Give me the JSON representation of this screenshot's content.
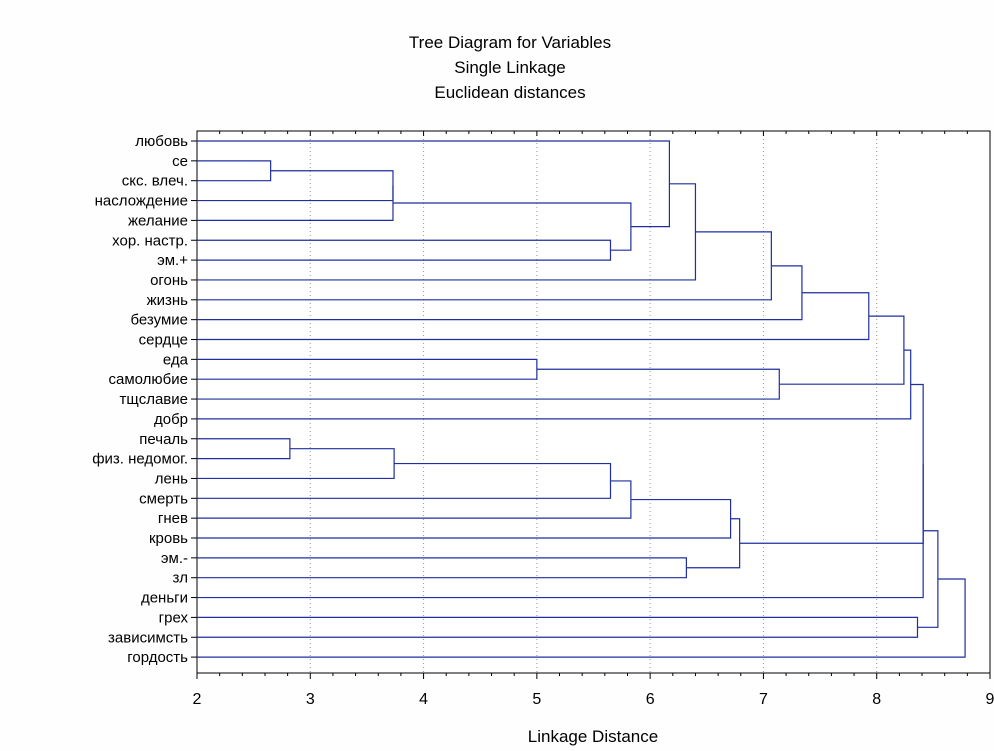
{
  "chart_data": {
    "type": "dendrogram",
    "title": [
      "Tree Diagram for  Variables",
      "Single Linkage",
      "Euclidean distances"
    ],
    "xlabel": "Linkage Distance",
    "ylabel": "",
    "xlim": [
      2,
      9
    ],
    "xticks": [
      2,
      3,
      4,
      5,
      6,
      7,
      8,
      9
    ],
    "grid": "vertical-dotted",
    "line_color": "#1f2f9f",
    "leaves": [
      "любовь",
      "се",
      "скс. влеч.",
      "наслождение",
      "желание",
      "хор. настр.",
      "эм.+",
      "огонь",
      "жизнь",
      "безумие",
      "сердце",
      "еда",
      "самолюбие",
      "тщславие",
      "добр",
      "печаль",
      "физ. недомог.",
      "лень",
      "смерть",
      "гнев",
      "кровь",
      "эм.-",
      "зл",
      "деньги",
      "грех",
      "зависимсть",
      "гордость"
    ],
    "merges": [
      {
        "id": "c1",
        "children": [
          "се",
          "скс. влеч."
        ],
        "height": 2.65
      },
      {
        "id": "c2",
        "children": [
          "c1",
          "наслождение"
        ],
        "height": 3.73
      },
      {
        "id": "c3",
        "children": [
          "c2",
          "желание"
        ],
        "height": 3.73
      },
      {
        "id": "c4",
        "children": [
          "хор. настр.",
          "эм.+"
        ],
        "height": 5.65
      },
      {
        "id": "c5",
        "children": [
          "c3",
          "c4"
        ],
        "height": 5.83
      },
      {
        "id": "c6",
        "children": [
          "любовь",
          "c5"
        ],
        "height": 6.17
      },
      {
        "id": "c7",
        "children": [
          "c6",
          "огонь"
        ],
        "height": 6.4
      },
      {
        "id": "c8",
        "children": [
          "c7",
          "жизнь"
        ],
        "height": 7.07
      },
      {
        "id": "c9",
        "children": [
          "c8",
          "безумие"
        ],
        "height": 7.34
      },
      {
        "id": "c10",
        "children": [
          "c9",
          "сердце"
        ],
        "height": 7.93
      },
      {
        "id": "c11",
        "children": [
          "еда",
          "самолюбие"
        ],
        "height": 5.0
      },
      {
        "id": "c12",
        "children": [
          "c11",
          "тщславие"
        ],
        "height": 7.14
      },
      {
        "id": "c13",
        "children": [
          "c10",
          "c12"
        ],
        "height": 8.24
      },
      {
        "id": "c14",
        "children": [
          "c13",
          "добр"
        ],
        "height": 8.3
      },
      {
        "id": "c15",
        "children": [
          "печаль",
          "физ. недомог."
        ],
        "height": 2.82
      },
      {
        "id": "c16",
        "children": [
          "c15",
          "лень"
        ],
        "height": 3.74
      },
      {
        "id": "c17",
        "children": [
          "c16",
          "смерть"
        ],
        "height": 5.65
      },
      {
        "id": "c18",
        "children": [
          "c17",
          "гнев"
        ],
        "height": 5.83
      },
      {
        "id": "c19",
        "children": [
          "c18",
          "кровь"
        ],
        "height": 6.71
      },
      {
        "id": "c20",
        "children": [
          "эм.-",
          "зл"
        ],
        "height": 6.32
      },
      {
        "id": "c21",
        "children": [
          "c19",
          "c20"
        ],
        "height": 6.79
      },
      {
        "id": "c22",
        "children": [
          "c14",
          "c21"
        ],
        "height": 8.41
      },
      {
        "id": "c23",
        "children": [
          "c22",
          "деньги"
        ],
        "height": 8.41
      },
      {
        "id": "c24",
        "children": [
          "грех",
          "зависимсть"
        ],
        "height": 8.36
      },
      {
        "id": "c25",
        "children": [
          "c23",
          "c24"
        ],
        "height": 8.54
      },
      {
        "id": "c26",
        "children": [
          "c25",
          "гордость"
        ],
        "height": 8.78
      }
    ]
  }
}
